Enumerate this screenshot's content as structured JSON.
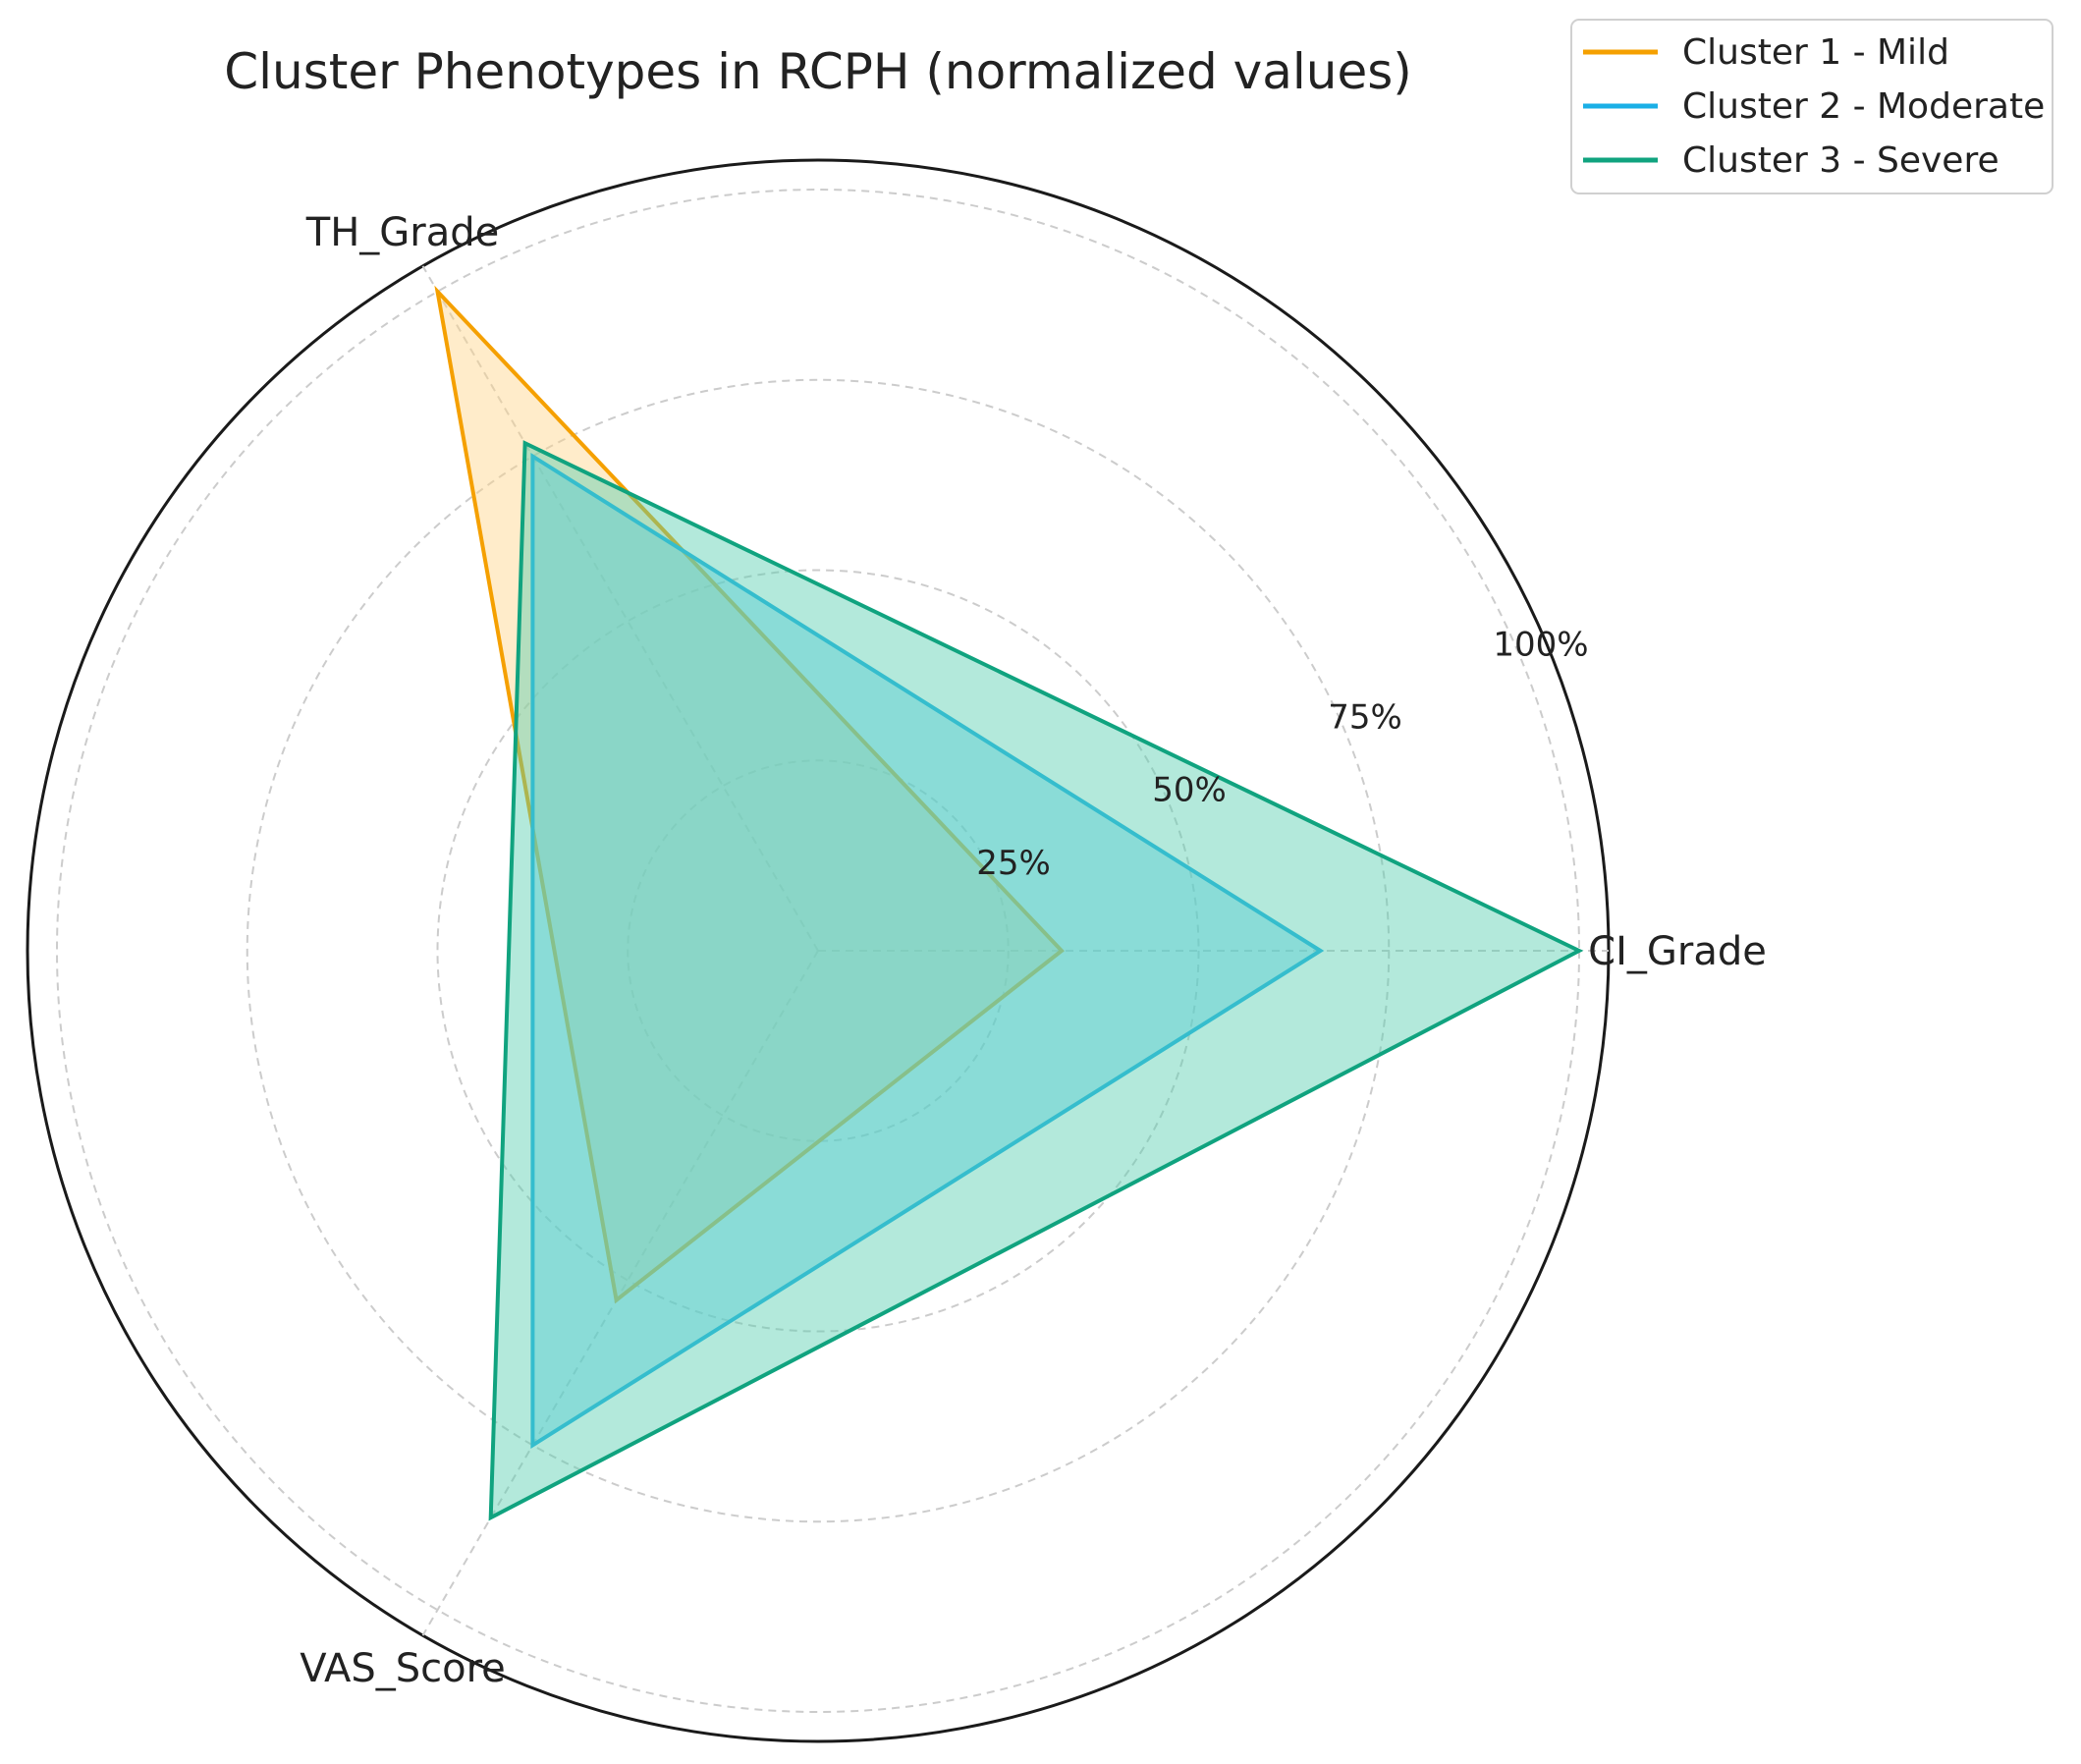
{
  "chart_data": {
    "type": "radar",
    "title": "Cluster Phenotypes in RCPH (normalized values)",
    "axes": [
      "CI_Grade",
      "TH_Grade",
      "VAS_Score"
    ],
    "radial_ticks": [
      {
        "value": 25,
        "label": "25%"
      },
      {
        "value": 50,
        "label": "50%"
      },
      {
        "value": 75,
        "label": "75%"
      },
      {
        "value": 100,
        "label": "100%"
      }
    ],
    "rlim": [
      0,
      100
    ],
    "grid": true,
    "legend_position": "top-right",
    "series": [
      {
        "name": "Cluster 1 - Mild",
        "color": "#F5A000",
        "fill": "#FFD48A",
        "values": [
          32,
          100,
          53
        ]
      },
      {
        "name": "Cluster 2 - Moderate",
        "color": "#1AAFE6",
        "fill": "#5CCBF0",
        "values": [
          66,
          75,
          75
        ]
      },
      {
        "name": "Cluster 3 - Severe",
        "color": "#10A37F",
        "fill": "#56CFB0",
        "values": [
          100,
          77,
          86
        ]
      }
    ]
  }
}
